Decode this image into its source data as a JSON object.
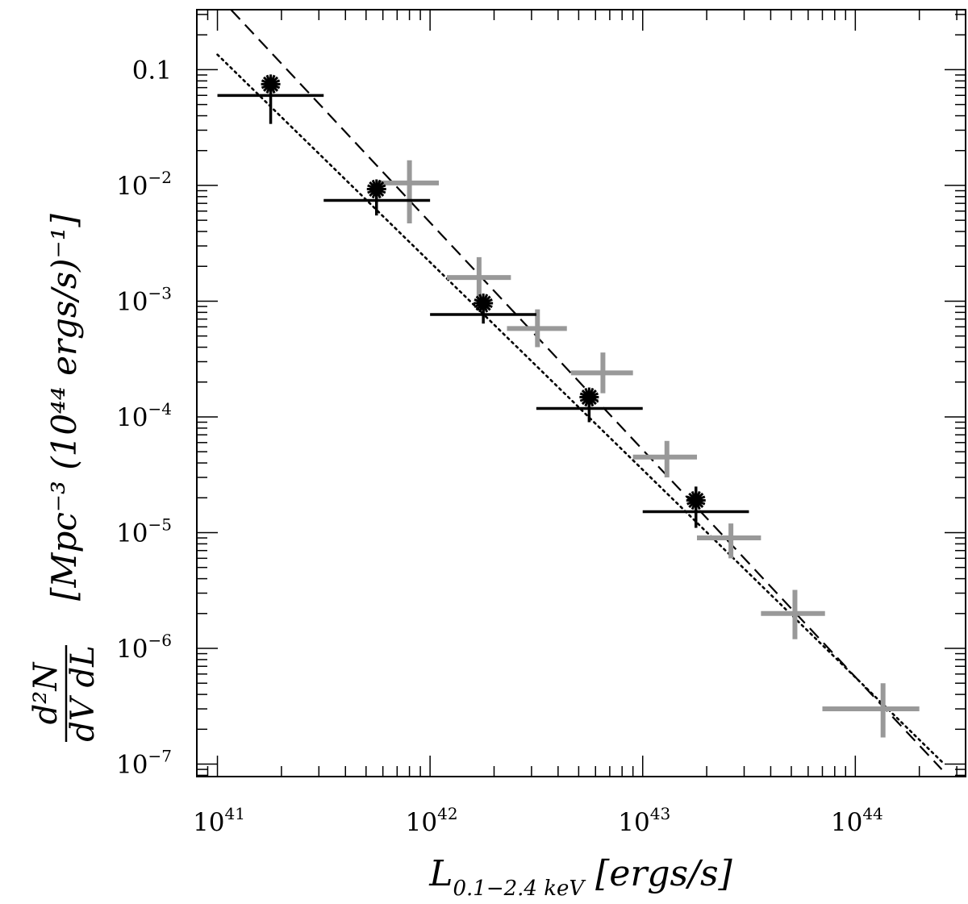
{
  "chart_data": {
    "type": "scatter",
    "x_scale": "log",
    "y_scale": "log",
    "xlim": [
      8e+40,
      3.3e+44
    ],
    "ylim": [
      7.8e-08,
      0.33
    ],
    "x_ticks": [
      {
        "value": 1e+41,
        "base": "10",
        "exp": "41"
      },
      {
        "value": 1e+42,
        "base": "10",
        "exp": "42"
      },
      {
        "value": 1e+43,
        "base": "10",
        "exp": "43"
      },
      {
        "value": 1e+44,
        "base": "10",
        "exp": "44"
      }
    ],
    "y_ticks": [
      {
        "value": 0.1,
        "base": "0.1",
        "exp": ""
      },
      {
        "value": 0.01,
        "base": "10",
        "exp": "−2"
      },
      {
        "value": 0.001,
        "base": "10",
        "exp": "−3"
      },
      {
        "value": 0.0001,
        "base": "10",
        "exp": "−4"
      },
      {
        "value": 1e-05,
        "base": "10",
        "exp": "−5"
      },
      {
        "value": 1e-06,
        "base": "10",
        "exp": "−6"
      },
      {
        "value": 1e-07,
        "base": "10",
        "exp": "−7"
      }
    ],
    "xlabel": {
      "main": "L",
      "sub": "0.1−2.4 keV",
      "unit": "[ergs/s]"
    },
    "ylabel": {
      "num": "d²N",
      "den": "dV dL",
      "unit": "[Mpc⁻³ (10⁴⁴ ergs/s)⁻¹]"
    },
    "series": [
      {
        "style": "black-asterisk",
        "color": "#000000",
        "points": [
          {
            "x": 1.78e+41,
            "y": 0.075,
            "xlo": 1e+41,
            "xhi": 3.16e+41,
            "ylo": 0.034,
            "yhi": 0.075
          },
          {
            "x": 5.6e+41,
            "y": 0.0093,
            "xlo": 3.16e+41,
            "xhi": 1e+42,
            "ylo": 0.0055,
            "yhi": 0.0093
          },
          {
            "x": 1.78e+42,
            "y": 0.00096,
            "xlo": 1e+42,
            "xhi": 3.16e+42,
            "ylo": 0.00064,
            "yhi": 0.00096
          },
          {
            "x": 5.6e+42,
            "y": 0.000148,
            "xlo": 3.16e+42,
            "xhi": 1e+43,
            "ylo": 9e-05,
            "yhi": 0.000148
          },
          {
            "x": 1.78e+43,
            "y": 1.9e-05,
            "xlo": 1e+43,
            "xhi": 3.16e+43,
            "ylo": 1.1e-05,
            "yhi": 2.5e-05
          }
        ]
      },
      {
        "style": "gray-cross",
        "color": "#999999",
        "points": [
          {
            "x": 8e+41,
            "y": 0.0105,
            "xlo": 5.6e+41,
            "xhi": 1.1e+42,
            "ylo": 0.0047,
            "yhi": 0.0165
          },
          {
            "x": 1.7e+42,
            "y": 0.0016,
            "xlo": 1.2e+42,
            "xhi": 2.4e+42,
            "ylo": 0.0009,
            "yhi": 0.0024
          },
          {
            "x": 3.2e+42,
            "y": 0.00058,
            "xlo": 2.3e+42,
            "xhi": 4.4e+42,
            "ylo": 0.0004,
            "yhi": 0.00085
          },
          {
            "x": 6.5e+42,
            "y": 0.00024,
            "xlo": 4.6e+42,
            "xhi": 9e+42,
            "ylo": 0.00016,
            "yhi": 0.00036
          },
          {
            "x": 1.3e+43,
            "y": 4.5e-05,
            "xlo": 9e+42,
            "xhi": 1.8e+43,
            "ylo": 3e-05,
            "yhi": 6.2e-05
          },
          {
            "x": 2.6e+43,
            "y": 9e-06,
            "xlo": 1.8e+43,
            "xhi": 3.6e+43,
            "ylo": 6e-06,
            "yhi": 1.2e-05
          },
          {
            "x": 5.2e+43,
            "y": 2e-06,
            "xlo": 3.6e+43,
            "xhi": 7.2e+43,
            "ylo": 1.2e-06,
            "yhi": 3.2e-06
          },
          {
            "x": 1.35e+44,
            "y": 3e-07,
            "xlo": 7e+43,
            "xhi": 2e+44,
            "ylo": 1.7e-07,
            "yhi": 5e-07
          }
        ]
      }
    ],
    "fit_lines": [
      {
        "style": "dashed",
        "p1": {
          "x": 1e+41,
          "y": 0.44
        },
        "p2": {
          "x": 2.55e+44,
          "y": 9e-08
        }
      },
      {
        "style": "dotted",
        "p1": {
          "x": 1e+41,
          "y": 0.135
        },
        "p2": {
          "x": 2.55e+44,
          "y": 1.05e-07
        }
      }
    ]
  }
}
